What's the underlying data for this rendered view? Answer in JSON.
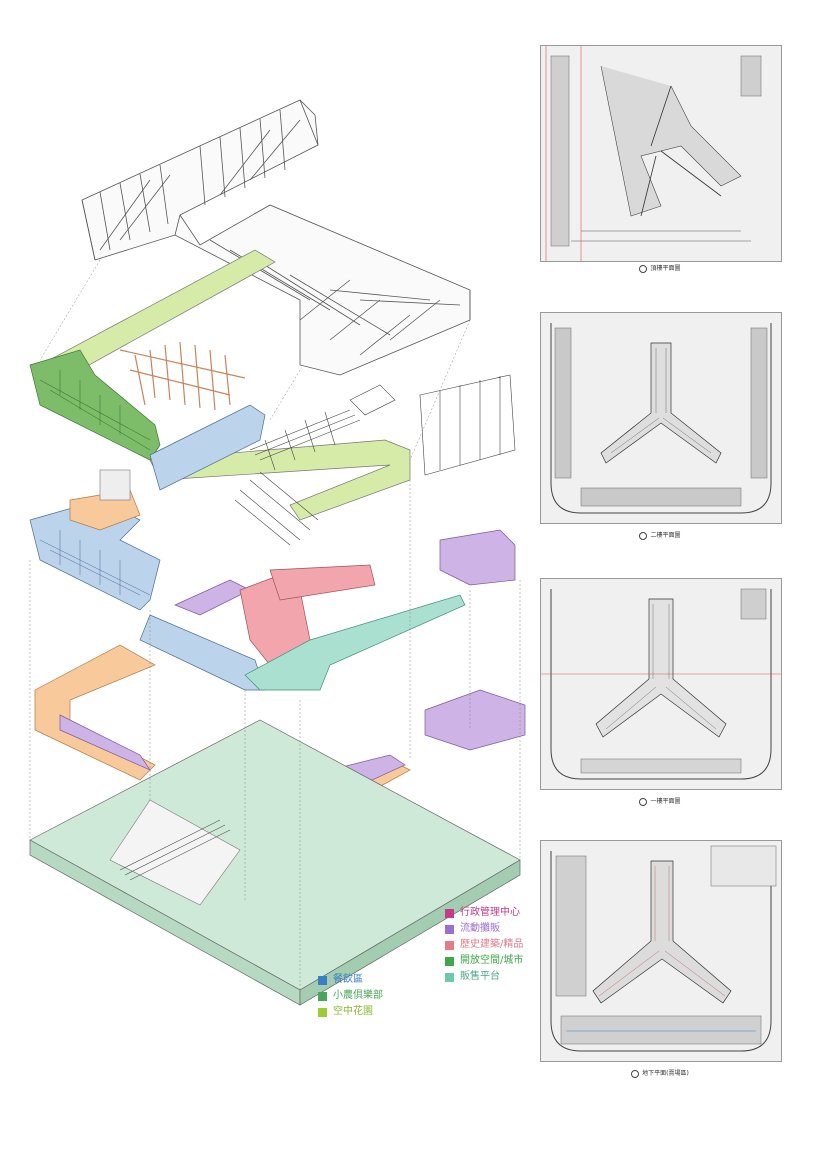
{
  "legend_right": [
    {
      "label": "行政管理中心",
      "color": "#c23b8c"
    },
    {
      "label": "流動攤販",
      "color": "#9b6fd1"
    },
    {
      "label": "歷史建築/精品",
      "color": "#e57a8a"
    },
    {
      "label": "開放空間/城市",
      "color": "#3fa64a"
    },
    {
      "label": "販售平台",
      "color": "#6ec9a8"
    }
  ],
  "legend_left": [
    {
      "label": "餐飲區",
      "color": "#3a7fc4"
    },
    {
      "label": "小農俱樂部",
      "color": "#4aa65a"
    },
    {
      "label": "空中花園",
      "color": "#9acd32"
    }
  ],
  "plans": [
    {
      "caption": "頂樓平面圖"
    },
    {
      "caption": "二樓平面圖"
    },
    {
      "caption": "一樓平面圖"
    },
    {
      "caption": "地下平面(賣場區)"
    }
  ],
  "colors": {
    "blue": "#bcd3ec",
    "green": "#7dbd6a",
    "lime": "#d6eba8",
    "orange": "#f7c99b",
    "purple": "#cdb3e6",
    "pink": "#f2a5ad",
    "teal": "#a9e0cf",
    "ground": "#cfe9d8"
  }
}
